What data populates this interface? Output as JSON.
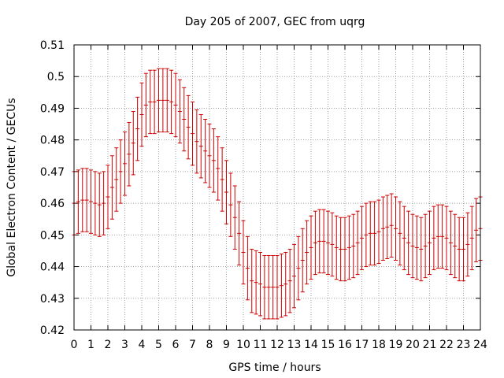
{
  "chart_data": {
    "type": "scatter",
    "title": "Day 205 of 2007, GEC from uqrg",
    "xlabel": "GPS time / hours",
    "ylabel": "Global Electron Content / GECUs",
    "xlim": [
      0,
      24
    ],
    "ylim": [
      0.42,
      0.51
    ],
    "xticks": [
      "0",
      "1",
      "2",
      "3",
      "4",
      "5",
      "6",
      "7",
      "8",
      "9",
      "10",
      "11",
      "12",
      "13",
      "14",
      "15",
      "16",
      "17",
      "18",
      "19",
      "20",
      "21",
      "22",
      "23",
      "24"
    ],
    "yticks": [
      "0.42",
      "0.43",
      "0.44",
      "0.45",
      "0.46",
      "0.47",
      "0.48",
      "0.49",
      "0.5",
      "0.51"
    ],
    "grid": true,
    "series": [
      {
        "color": "#cc0000",
        "x": [
          0,
          0.25,
          0.5,
          0.75,
          1,
          1.25,
          1.5,
          1.75,
          2,
          2.25,
          2.5,
          2.75,
          3,
          3.25,
          3.5,
          3.75,
          4,
          4.25,
          4.5,
          4.75,
          5,
          5.25,
          5.5,
          5.75,
          6,
          6.25,
          6.5,
          6.75,
          7,
          7.25,
          7.5,
          7.75,
          8,
          8.25,
          8.5,
          8.75,
          9,
          9.25,
          9.5,
          9.75,
          10,
          10.25,
          10.5,
          10.75,
          11,
          11.25,
          11.5,
          11.75,
          12,
          12.25,
          12.5,
          12.75,
          13,
          13.25,
          13.5,
          13.75,
          14,
          14.25,
          14.5,
          14.75,
          15,
          15.25,
          15.5,
          15.75,
          16,
          16.25,
          16.5,
          16.75,
          17,
          17.25,
          17.5,
          17.75,
          18,
          18.25,
          18.5,
          18.75,
          19,
          19.25,
          19.5,
          19.75,
          20,
          20.25,
          20.5,
          20.75,
          21,
          21.25,
          21.5,
          21.75,
          22,
          22.25,
          22.5,
          22.75,
          23,
          23.25,
          23.5,
          23.75,
          24
        ],
        "y": [
          0.46,
          0.4605,
          0.461,
          0.461,
          0.4605,
          0.46,
          0.4595,
          0.46,
          0.462,
          0.465,
          0.4675,
          0.47,
          0.4725,
          0.4755,
          0.479,
          0.4835,
          0.488,
          0.491,
          0.492,
          0.492,
          0.4925,
          0.4925,
          0.4925,
          0.492,
          0.491,
          0.489,
          0.4865,
          0.484,
          0.482,
          0.4795,
          0.478,
          0.4765,
          0.475,
          0.4735,
          0.471,
          0.4675,
          0.4635,
          0.4595,
          0.4555,
          0.4505,
          0.4445,
          0.4395,
          0.4355,
          0.435,
          0.4345,
          0.4335,
          0.4335,
          0.4335,
          0.4335,
          0.434,
          0.4345,
          0.4355,
          0.437,
          0.4395,
          0.442,
          0.4445,
          0.446,
          0.4475,
          0.448,
          0.448,
          0.4475,
          0.447,
          0.446,
          0.4455,
          0.4455,
          0.446,
          0.4465,
          0.4475,
          0.449,
          0.45,
          0.4505,
          0.4505,
          0.451,
          0.452,
          0.4525,
          0.453,
          0.452,
          0.4505,
          0.449,
          0.4475,
          0.4465,
          0.446,
          0.4455,
          0.4465,
          0.4475,
          0.449,
          0.4495,
          0.4495,
          0.449,
          0.4475,
          0.4465,
          0.4455,
          0.4455,
          0.447,
          0.449,
          0.4515,
          0.452
        ],
        "err": 0.01
      }
    ]
  }
}
